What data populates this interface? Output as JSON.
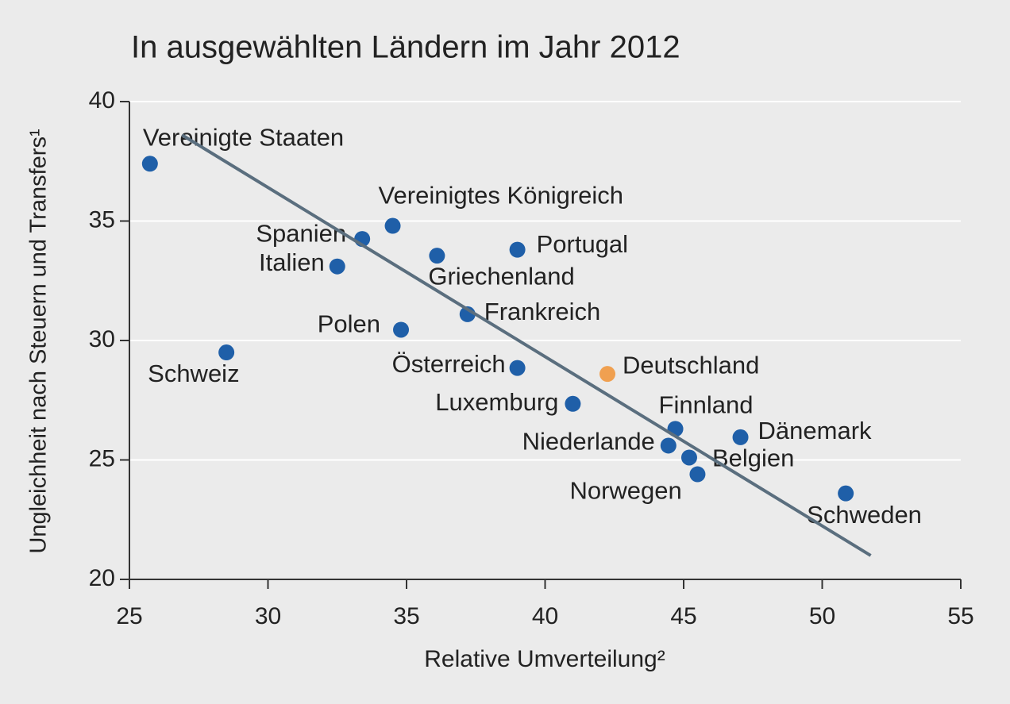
{
  "chart_data": {
    "type": "scatter",
    "title": "In ausgewählten Ländern im Jahr 2012",
    "xlabel": "Relative Umverteilung²",
    "ylabel": "Ungleichheit nach Steuern und Transfers¹",
    "labels": [
      "Vereinigte Staaten",
      "Schweiz",
      "Spanien",
      "Italien",
      "Vereinigtes Königreich",
      "Griechenland",
      "Portugal",
      "Frankreich",
      "Polen",
      "Österreich",
      "Deutschland",
      "Luxemburg",
      "Finnland",
      "Niederlande",
      "Belgien",
      "Norwegen",
      "Dänemark",
      "Schweden"
    ],
    "x": [
      25.74,
      28.5,
      33.4,
      32.5,
      34.5,
      36.1,
      39.0,
      37.2,
      34.8,
      39.0,
      42.25,
      41.0,
      44.7,
      44.45,
      45.2,
      45.5,
      47.05,
      50.85
    ],
    "y": [
      37.4,
      29.5,
      34.25,
      33.1,
      34.8,
      33.55,
      33.8,
      31.1,
      30.45,
      28.85,
      28.6,
      27.35,
      26.3,
      25.6,
      25.1,
      24.4,
      25.95,
      23.6
    ],
    "colors": [
      "#1f5fa8",
      "#1f5fa8",
      "#1f5fa8",
      "#1f5fa8",
      "#1f5fa8",
      "#1f5fa8",
      "#1f5fa8",
      "#1f5fa8",
      "#1f5fa8",
      "#1f5fa8",
      "#f0a050",
      "#1f5fa8",
      "#1f5fa8",
      "#1f5fa8",
      "#1f5fa8",
      "#1f5fa8",
      "#1f5fa8",
      "#1f5fa8"
    ],
    "trendline": {
      "x": [
        26.9,
        51.75
      ],
      "y": [
        38.6,
        21.0
      ],
      "color": "#5a6e7e"
    },
    "xlim": [
      25,
      55
    ],
    "ylim": [
      20,
      40
    ],
    "xticks": [
      25,
      30,
      35,
      40,
      45,
      50,
      55
    ],
    "yticks": [
      20,
      25,
      30,
      35,
      40
    ],
    "grid": true
  }
}
